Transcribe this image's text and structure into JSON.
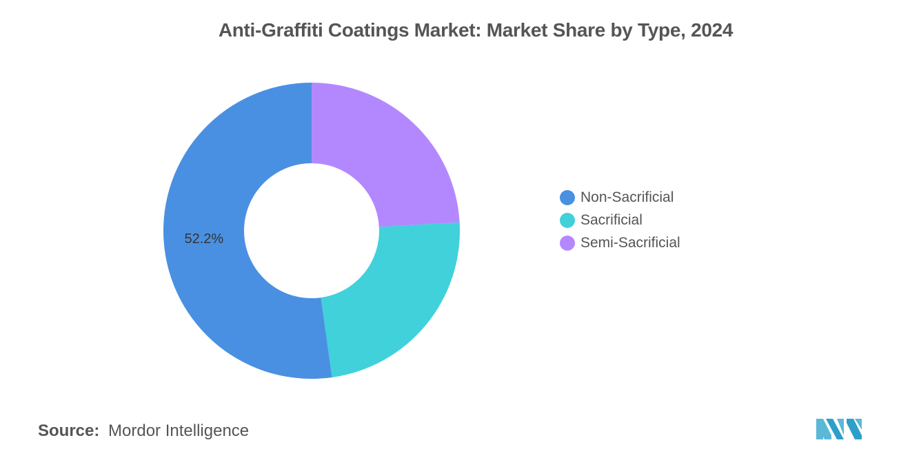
{
  "chart_data": {
    "type": "pie",
    "donut": true,
    "title": "Anti-Graffiti Coatings Market: Market Share by Type, 2024",
    "categories": [
      "Non-Sacrificial",
      "Sacrificial",
      "Semi-Sacrificial"
    ],
    "values": [
      52.2,
      23.7,
      24.1
    ],
    "colors": [
      "#4A90E2",
      "#40D1DA",
      "#B388FF"
    ],
    "data_labels": [
      "52.2%",
      "",
      ""
    ],
    "legend": "right"
  },
  "source": {
    "label": "Source:",
    "text": "Mordor Intelligence"
  },
  "logo": {
    "icon": "mordor-intelligence-logo",
    "color": "#5BB8D6"
  }
}
